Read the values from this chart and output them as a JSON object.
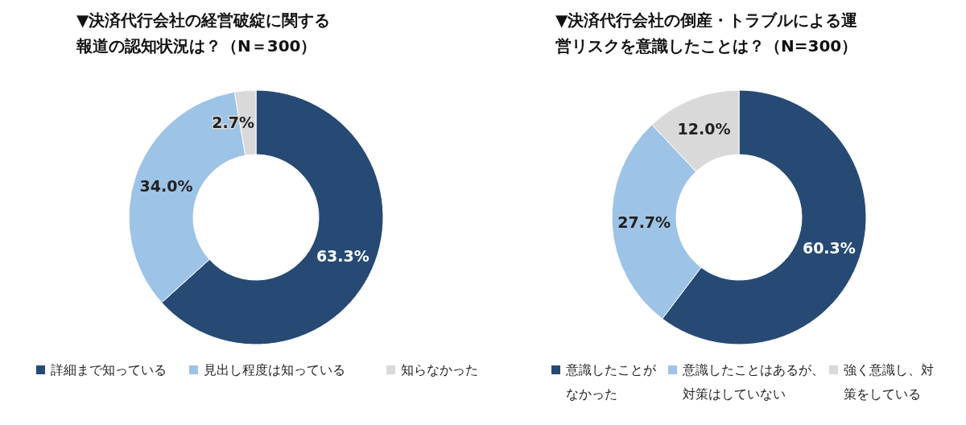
{
  "chart_data": [
    {
      "type": "donut",
      "title": "▼決済代行会社の経営破綻に関する報道の認知状況は？（N＝300）",
      "categories": [
        "詳細まで知っている",
        "見出し程度は知っている",
        "知らなかった"
      ],
      "values": [
        63.3,
        34.0,
        2.7
      ],
      "colors": [
        "#264a74",
        "#9dc3e6",
        "#d9d9d9"
      ],
      "value_labels": [
        "63.3%",
        "34.0%",
        "2.7%"
      ],
      "legend": "bottom"
    },
    {
      "type": "donut",
      "title": "▼決済代行会社の倒産・トラブルによる運営リスクを意識したことは？（N=300）",
      "categories": [
        "意識したことがなかった",
        "意識したことはあるが、対策はしていない",
        "強く意識し、対策をしている"
      ],
      "values": [
        60.3,
        27.7,
        12.0
      ],
      "colors": [
        "#264a74",
        "#9dc3e6",
        "#d9d9d9"
      ],
      "value_labels": [
        "60.3%",
        "27.7%",
        "12.0%"
      ],
      "legend": "bottom"
    }
  ]
}
